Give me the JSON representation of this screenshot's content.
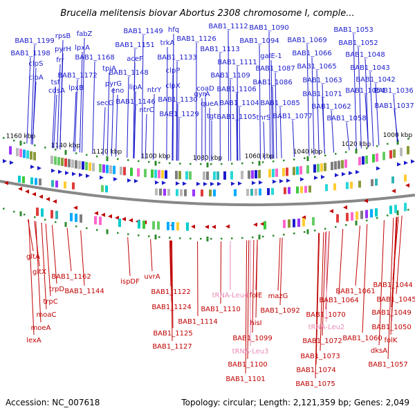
{
  "title": "Brucella melitensis biovar Abortus 2308 chromosome I, comple...",
  "footer": {
    "accession": "Accession: NC_007618",
    "topology": "Topology: circular; Length: 2,121,359 bp; Genes: 2,049"
  },
  "colors": {
    "forward": "#1a1acc",
    "reverse": "#c00000",
    "rna": "#e58ab7",
    "tick": "#2e8b2e",
    "backbone": "#888888"
  },
  "ticks": [
    {
      "label": "1160 kbp"
    },
    {
      "label": "1140 kbp"
    },
    {
      "label": "1120 kbp"
    },
    {
      "label": "1100 kbp"
    },
    {
      "label": "1080 kbp"
    },
    {
      "label": "1060 kbp"
    },
    {
      "label": "1040 kbp"
    },
    {
      "label": "1020 kbp"
    },
    {
      "label": "1000 kbp"
    }
  ],
  "genes_top": [
    "BAB1_1199",
    "BAB1_1198",
    "clpS",
    "clpA",
    "rpsB",
    "pyrH",
    "frr",
    "tsf",
    "cdsA",
    "fabZ",
    "lpxA",
    "lpxB",
    "BAB1_1172",
    "BAB1_1168",
    "tpiA",
    "pyrG",
    "eno",
    "secG",
    "BAB1_1149",
    "BAB1_1151",
    "aceF",
    "BAB1_1148",
    "lipA",
    "BAB1_1146",
    "ntrY",
    "ntrC",
    "hfq",
    "trkA",
    "BAB1_1133",
    "clpP",
    "clpX",
    "BAB1_1130",
    "BAB1_1129",
    "BAB1_1126",
    "BAB1_1113",
    "gyrA",
    "coaD",
    "queA",
    "tgt",
    "BAB1_1112",
    "BAB1_1111",
    "BAB1_1109",
    "BAB1_1106",
    "BAB1_1104",
    "BAB1_1105",
    "BAB1_1090",
    "BAB1_1094",
    "galE-1",
    "BAB1_1087",
    "BAB1_1086",
    "BAB1_1085",
    "thrS",
    "BAB1_1077",
    "BAB1_1069",
    "BAB1_1066",
    "BAB1_1065",
    "BAB1_1063",
    "BAB1_1071",
    "BAB1_1062",
    "BAB1_1058",
    "BAB1_1053",
    "BAB1_1052",
    "BAB1_1048",
    "BAB1_1043",
    "BAB1_1042",
    "BAB1_1054",
    "BAB1_1036",
    "BAB1_1037"
  ],
  "genes_bottom": [
    "gltA",
    "gltX",
    "BAB1_1162",
    "trpD",
    "trpC",
    "moaC",
    "moeA",
    "lexA",
    "BAB1_1144",
    "ispDF",
    "uvrA",
    "BAB1_1122",
    "BAB1_1124",
    "BAB1_1114",
    "BAB1_1125",
    "BAB1_1127",
    "BAB1_1110",
    "folE",
    "mazG",
    "BAB1_1092",
    "hisI",
    "BAB1_1099",
    "BAB1_1100",
    "BAB1_1101",
    "BAB1_1061",
    "BAB1_1064",
    "BAB1_1070",
    "BAB1_1072",
    "BAB1_1073",
    "BAB1_1074",
    "BAB1_1075",
    "BAB1_1060",
    "BAB1_1044",
    "BAB1_1045",
    "BAB1_1049",
    "BAB1_1050",
    "folK",
    "dksA",
    "BAB1_1057"
  ],
  "genes_rna": [
    "tRNA-Leu4",
    "tRNA-Leu2",
    "tRNA-Leu3"
  ]
}
